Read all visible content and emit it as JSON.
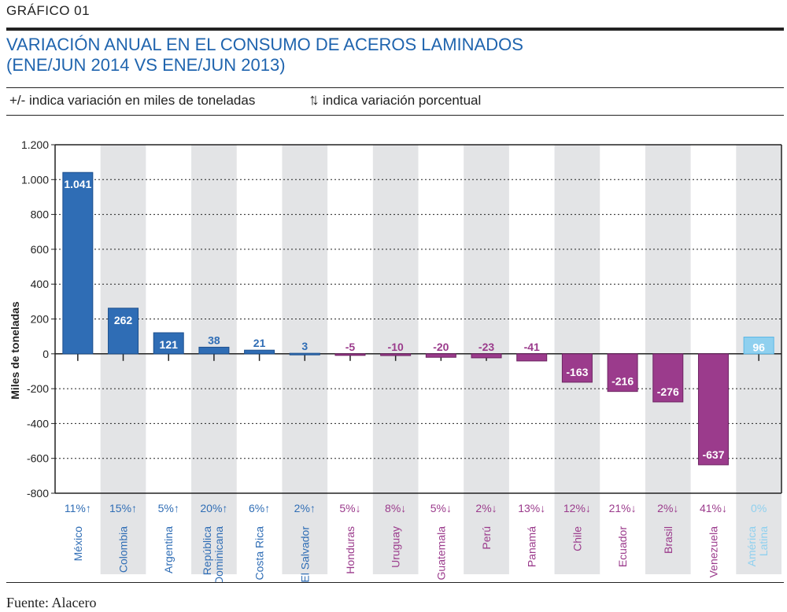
{
  "header": {
    "figure_label": "GRÁFICO  01",
    "title_line1": "VARIACIÓN ANUAL EN EL CONSUMO DE ACEROS LAMINADOS",
    "title_line2": "(ENE/JUN 2014 VS ENE/JUN 2013)",
    "legend_absolute": "+/- indica variación en miles de toneladas",
    "legend_percent": "indica variación porcentual",
    "legend_arrows": "↑↓"
  },
  "footer": {
    "source": "Fuente:  Alacero"
  },
  "colors": {
    "positive": "#2f6db5",
    "negative": "#9b3b8c",
    "region": "#8fd0ef",
    "band": "#e3e4e6"
  },
  "chart_data": {
    "type": "bar",
    "title": "VARIACIÓN ANUAL EN EL CONSUMO DE ACEROS LAMINADOS (ENE/JUN 2014 VS ENE/JUN 2013)",
    "ylabel": "Miles de toneladas",
    "ylim": [
      -800,
      1200
    ],
    "yticks": [
      -800,
      -600,
      -400,
      -200,
      0,
      200,
      400,
      600,
      800,
      1000,
      1200
    ],
    "ytick_labels": [
      "-800",
      "-600",
      "-400",
      "-200",
      "0",
      "200",
      "400",
      "600",
      "800",
      "1.000",
      "1.200"
    ],
    "grid": true,
    "categories": [
      "México",
      "Colombia",
      "Argentina",
      "República Dominicana",
      "Costa Rica",
      "El Salvador",
      "Honduras",
      "Uruguay",
      "Guatemala",
      "Perú",
      "Panamá",
      "Chile",
      "Ecuador",
      "Brasil",
      "Venezuela",
      "América Latina"
    ],
    "values": [
      1041,
      262,
      121,
      38,
      21,
      3,
      -5,
      -10,
      -20,
      -23,
      -41,
      -163,
      -216,
      -276,
      -637,
      96
    ],
    "value_labels": [
      "1.041",
      "262",
      "121",
      "38",
      "21",
      "3",
      "-5",
      "-10",
      "-20",
      "-23",
      "-41",
      "-163",
      "-216",
      "-276",
      "-637",
      "96"
    ],
    "percent_change": [
      "11%↑",
      "15%↑",
      "5%↑",
      "20%↑",
      "6%↑",
      "2%↑",
      "5%↓",
      "8%↓",
      "5%↓",
      "2%↓",
      "13%↓",
      "12%↓",
      "21%↓",
      "2%↓",
      "41%↓",
      "0%"
    ],
    "category_labels": [
      [
        "México"
      ],
      [
        "Colombia"
      ],
      [
        "Argentina"
      ],
      [
        "República",
        "Dominicana"
      ],
      [
        "Costa Rica"
      ],
      [
        "El Salvador"
      ],
      [
        "Honduras"
      ],
      [
        "Uruguay"
      ],
      [
        "Guatemala"
      ],
      [
        "Perú"
      ],
      [
        "Panamá"
      ],
      [
        "Chile"
      ],
      [
        "Ecuador"
      ],
      [
        "Brasil"
      ],
      [
        "Venezuela"
      ],
      [
        "América",
        "Latina"
      ]
    ]
  }
}
